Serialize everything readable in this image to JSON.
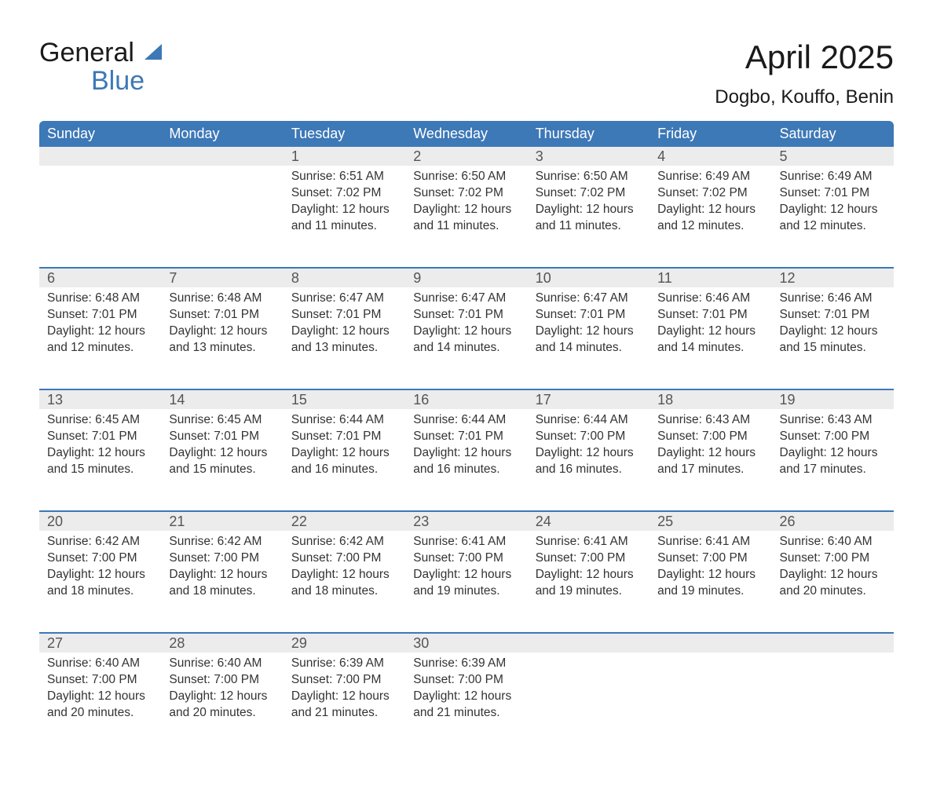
{
  "logo": {
    "line1": "General",
    "line2": "Blue",
    "line1_color": "#1a1a1a",
    "line2_color": "#3d78b7",
    "sail_color": "#3d78b7"
  },
  "header": {
    "title": "April 2025",
    "location": "Dogbo, Kouffo, Benin"
  },
  "styling": {
    "header_bg": "#3d78b7",
    "header_text_color": "#ffffff",
    "daynum_bg": "#ececec",
    "row_divider_color": "#3d78b7",
    "body_text_color": "#333333",
    "page_bg": "#ffffff",
    "column_count": 7,
    "header_fontsize": 18,
    "daynum_fontsize": 18,
    "content_fontsize": 15.5,
    "title_fontsize": 42,
    "location_fontsize": 24
  },
  "weekdays": [
    "Sunday",
    "Monday",
    "Tuesday",
    "Wednesday",
    "Thursday",
    "Friday",
    "Saturday"
  ],
  "weeks": [
    [
      null,
      null,
      {
        "n": "1",
        "sunrise": "6:51 AM",
        "sunset": "7:02 PM",
        "daylight": "12 hours and 11 minutes."
      },
      {
        "n": "2",
        "sunrise": "6:50 AM",
        "sunset": "7:02 PM",
        "daylight": "12 hours and 11 minutes."
      },
      {
        "n": "3",
        "sunrise": "6:50 AM",
        "sunset": "7:02 PM",
        "daylight": "12 hours and 11 minutes."
      },
      {
        "n": "4",
        "sunrise": "6:49 AM",
        "sunset": "7:02 PM",
        "daylight": "12 hours and 12 minutes."
      },
      {
        "n": "5",
        "sunrise": "6:49 AM",
        "sunset": "7:01 PM",
        "daylight": "12 hours and 12 minutes."
      }
    ],
    [
      {
        "n": "6",
        "sunrise": "6:48 AM",
        "sunset": "7:01 PM",
        "daylight": "12 hours and 12 minutes."
      },
      {
        "n": "7",
        "sunrise": "6:48 AM",
        "sunset": "7:01 PM",
        "daylight": "12 hours and 13 minutes."
      },
      {
        "n": "8",
        "sunrise": "6:47 AM",
        "sunset": "7:01 PM",
        "daylight": "12 hours and 13 minutes."
      },
      {
        "n": "9",
        "sunrise": "6:47 AM",
        "sunset": "7:01 PM",
        "daylight": "12 hours and 14 minutes."
      },
      {
        "n": "10",
        "sunrise": "6:47 AM",
        "sunset": "7:01 PM",
        "daylight": "12 hours and 14 minutes."
      },
      {
        "n": "11",
        "sunrise": "6:46 AM",
        "sunset": "7:01 PM",
        "daylight": "12 hours and 14 minutes."
      },
      {
        "n": "12",
        "sunrise": "6:46 AM",
        "sunset": "7:01 PM",
        "daylight": "12 hours and 15 minutes."
      }
    ],
    [
      {
        "n": "13",
        "sunrise": "6:45 AM",
        "sunset": "7:01 PM",
        "daylight": "12 hours and 15 minutes."
      },
      {
        "n": "14",
        "sunrise": "6:45 AM",
        "sunset": "7:01 PM",
        "daylight": "12 hours and 15 minutes."
      },
      {
        "n": "15",
        "sunrise": "6:44 AM",
        "sunset": "7:01 PM",
        "daylight": "12 hours and 16 minutes."
      },
      {
        "n": "16",
        "sunrise": "6:44 AM",
        "sunset": "7:01 PM",
        "daylight": "12 hours and 16 minutes."
      },
      {
        "n": "17",
        "sunrise": "6:44 AM",
        "sunset": "7:00 PM",
        "daylight": "12 hours and 16 minutes."
      },
      {
        "n": "18",
        "sunrise": "6:43 AM",
        "sunset": "7:00 PM",
        "daylight": "12 hours and 17 minutes."
      },
      {
        "n": "19",
        "sunrise": "6:43 AM",
        "sunset": "7:00 PM",
        "daylight": "12 hours and 17 minutes."
      }
    ],
    [
      {
        "n": "20",
        "sunrise": "6:42 AM",
        "sunset": "7:00 PM",
        "daylight": "12 hours and 18 minutes."
      },
      {
        "n": "21",
        "sunrise": "6:42 AM",
        "sunset": "7:00 PM",
        "daylight": "12 hours and 18 minutes."
      },
      {
        "n": "22",
        "sunrise": "6:42 AM",
        "sunset": "7:00 PM",
        "daylight": "12 hours and 18 minutes."
      },
      {
        "n": "23",
        "sunrise": "6:41 AM",
        "sunset": "7:00 PM",
        "daylight": "12 hours and 19 minutes."
      },
      {
        "n": "24",
        "sunrise": "6:41 AM",
        "sunset": "7:00 PM",
        "daylight": "12 hours and 19 minutes."
      },
      {
        "n": "25",
        "sunrise": "6:41 AM",
        "sunset": "7:00 PM",
        "daylight": "12 hours and 19 minutes."
      },
      {
        "n": "26",
        "sunrise": "6:40 AM",
        "sunset": "7:00 PM",
        "daylight": "12 hours and 20 minutes."
      }
    ],
    [
      {
        "n": "27",
        "sunrise": "6:40 AM",
        "sunset": "7:00 PM",
        "daylight": "12 hours and 20 minutes."
      },
      {
        "n": "28",
        "sunrise": "6:40 AM",
        "sunset": "7:00 PM",
        "daylight": "12 hours and 20 minutes."
      },
      {
        "n": "29",
        "sunrise": "6:39 AM",
        "sunset": "7:00 PM",
        "daylight": "12 hours and 21 minutes."
      },
      {
        "n": "30",
        "sunrise": "6:39 AM",
        "sunset": "7:00 PM",
        "daylight": "12 hours and 21 minutes."
      },
      null,
      null,
      null
    ]
  ],
  "labels": {
    "sunrise_prefix": "Sunrise: ",
    "sunset_prefix": "Sunset: ",
    "daylight_prefix": "Daylight: "
  }
}
